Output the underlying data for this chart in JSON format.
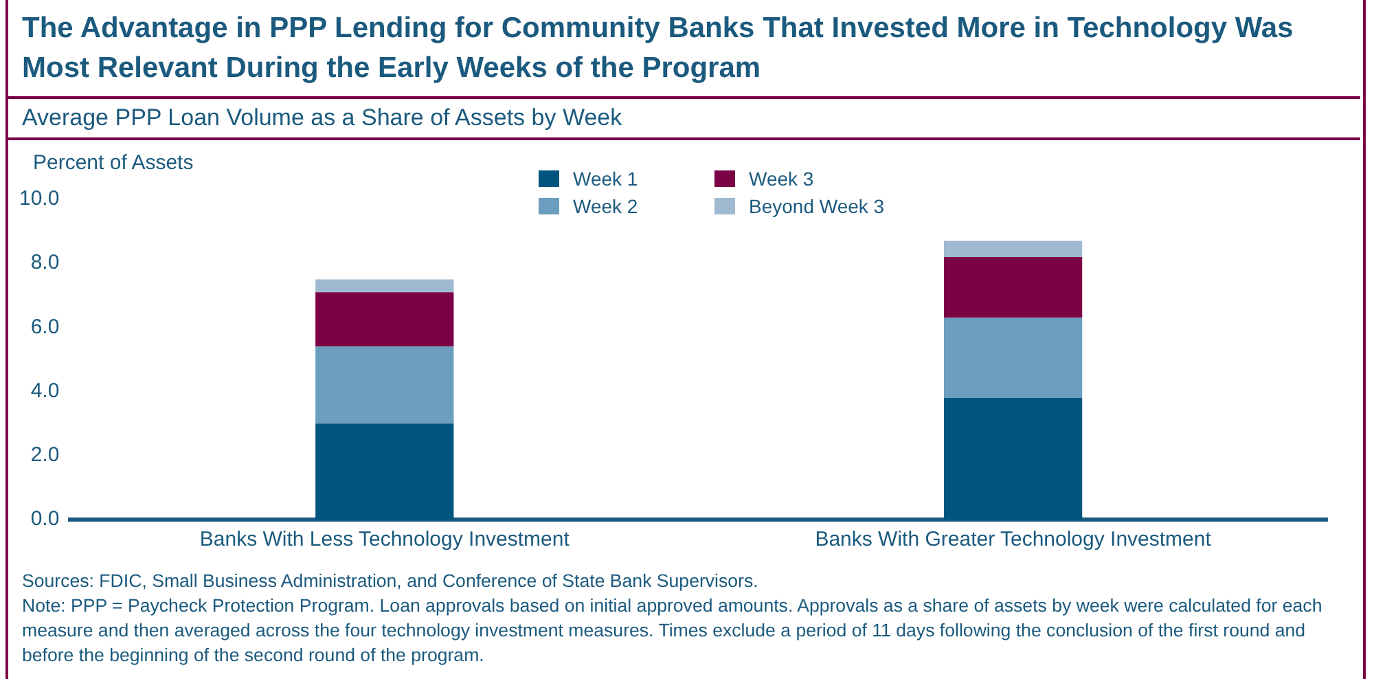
{
  "chart_data": {
    "type": "bar",
    "stacked": true,
    "title": "The Advantage in PPP Lending for Community Banks That Invested More in Technology Was Most Relevant During the Early Weeks of the Program",
    "subtitle": "Average PPP Loan Volume as a Share of Assets by Week",
    "ylabel": "Percent of Assets",
    "categories": [
      "Banks With Less Technology Investment",
      "Banks With Greater Technology Investment"
    ],
    "series": [
      {
        "name": "Week 1",
        "color": "#00557f",
        "values": [
          3.0,
          3.8
        ]
      },
      {
        "name": "Week 2",
        "color": "#6b9ebf",
        "values": [
          2.4,
          2.5
        ]
      },
      {
        "name": "Week 3",
        "color": "#7b0345",
        "values": [
          1.7,
          1.9
        ]
      },
      {
        "name": "Beyond Week 3",
        "color": "#9fbad0",
        "values": [
          0.4,
          0.5
        ]
      }
    ],
    "ylim": [
      0,
      10
    ],
    "yticks": [
      {
        "value": 0,
        "label": "0.0"
      },
      {
        "value": 2,
        "label": "2.0"
      },
      {
        "value": 4,
        "label": "4.0"
      },
      {
        "value": 6,
        "label": "6.0"
      },
      {
        "value": 8,
        "label": "8.0"
      },
      {
        "value": 10,
        "label": "10.0"
      }
    ],
    "grid": false,
    "legend": "top",
    "annotations": [
      "Sources: FDIC, Small Business Administration, and Conference of State Bank Supervisors.",
      "Note: PPP = Paycheck Protection Program. Loan approvals based on initial approved amounts. Approvals as a share of assets by week were calculated for each measure and then averaged across the four technology investment measures. Times exclude a period of 11 days following the conclusion of the first round and before the beginning of the second round of the program."
    ]
  }
}
